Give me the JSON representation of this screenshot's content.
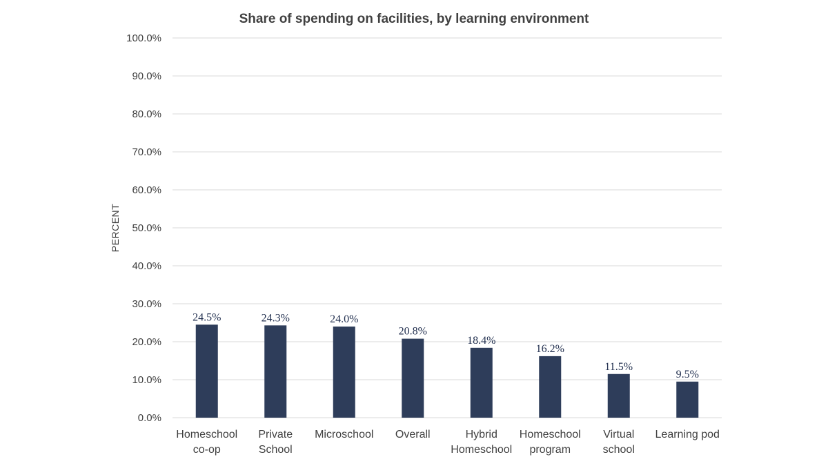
{
  "chart_data": {
    "type": "bar",
    "title": "Share of spending on facilities, by learning environment",
    "xlabel": "",
    "ylabel": "PERCENT",
    "ylim": [
      0,
      100
    ],
    "y_ticks": [
      "0.0%",
      "10.0%",
      "20.0%",
      "30.0%",
      "40.0%",
      "50.0%",
      "60.0%",
      "70.0%",
      "80.0%",
      "90.0%",
      "100.0%"
    ],
    "y_tick_values": [
      0,
      10,
      20,
      30,
      40,
      50,
      60,
      70,
      80,
      90,
      100
    ],
    "grid": true,
    "legend": "none",
    "bar_color": "#2e3d5a",
    "categories": [
      [
        "Homeschool",
        "co-op"
      ],
      [
        "Private",
        "School"
      ],
      [
        "Microschool"
      ],
      [
        "Overall"
      ],
      [
        "Hybrid",
        "Homeschool"
      ],
      [
        "Homeschool",
        "program"
      ],
      [
        "Virtual",
        "school"
      ],
      [
        "Learning pod"
      ]
    ],
    "values": [
      24.5,
      24.3,
      24.0,
      20.8,
      18.4,
      16.2,
      11.5,
      9.5
    ],
    "data_labels": [
      "24.5%",
      "24.3%",
      "24.0%",
      "20.8%",
      "18.4%",
      "16.2%",
      "11.5%",
      "9.5%"
    ]
  }
}
